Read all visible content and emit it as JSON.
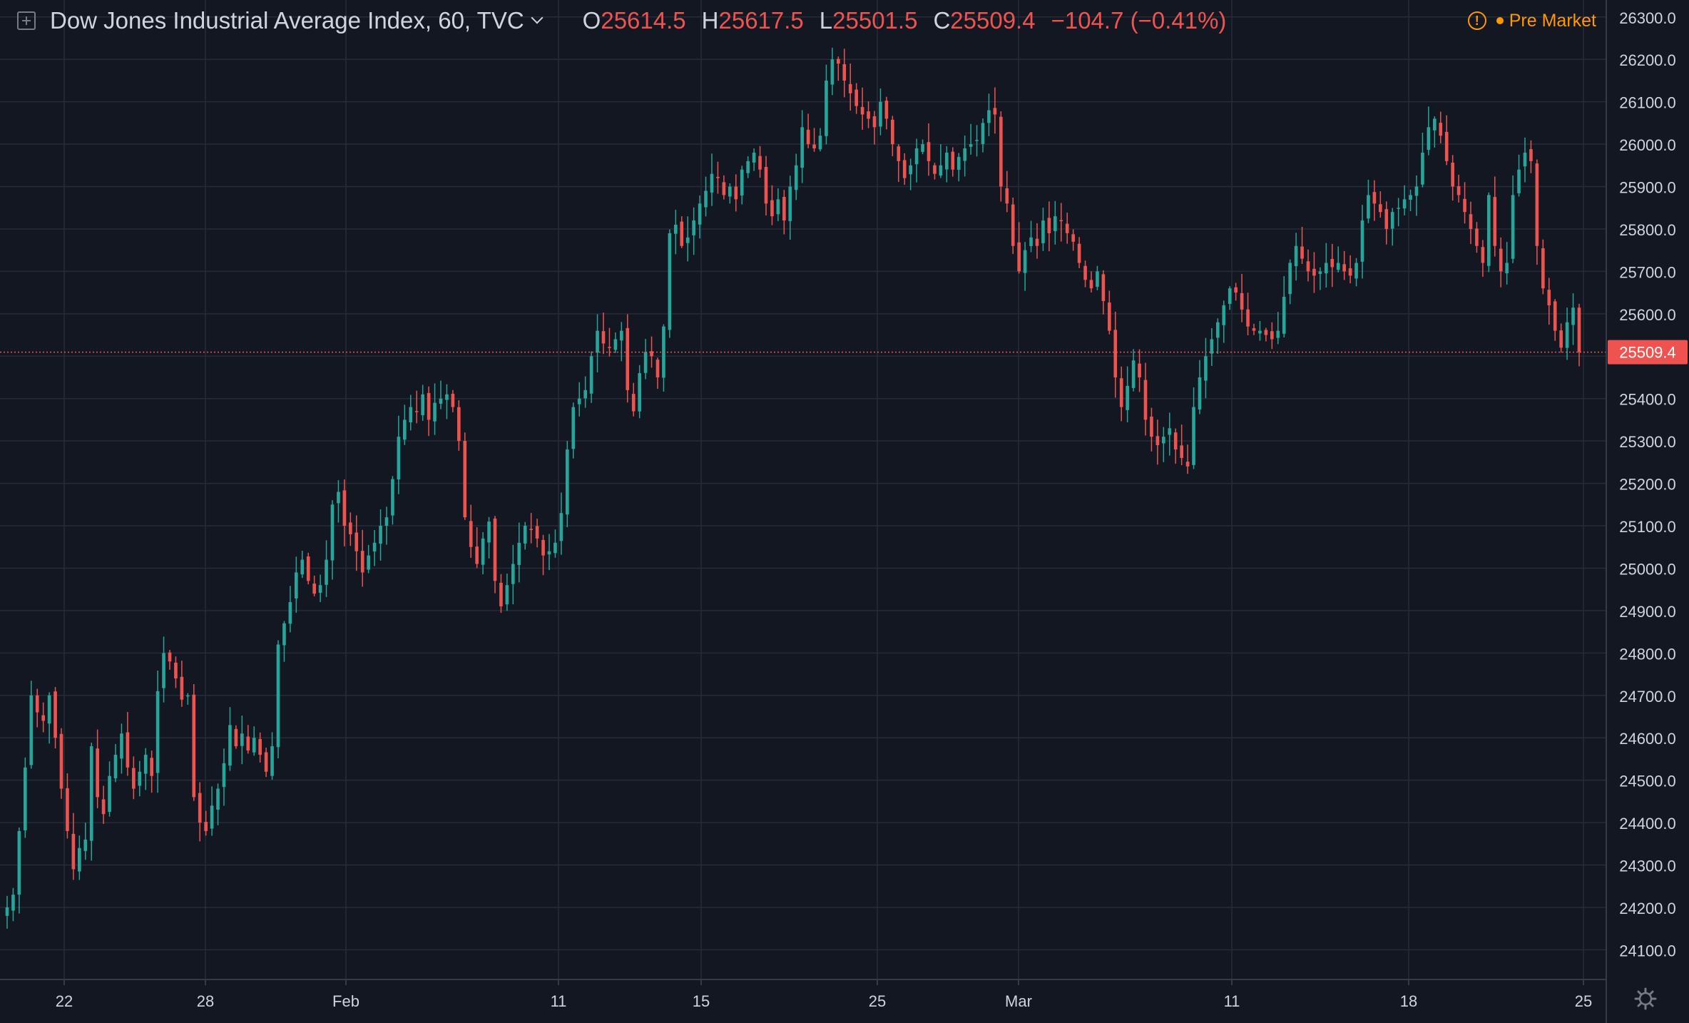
{
  "header": {
    "title": "Dow Jones Industrial Average Index, 60, TVC",
    "open_label": "O",
    "open": "25614.5",
    "high_label": "H",
    "high": "25617.5",
    "low_label": "L",
    "low": "25501.5",
    "close_label": "C",
    "close": "25509.4",
    "change": "−104.7 (−0.41%)",
    "market_status": "Pre Market",
    "market_status_icon": "exclamation-icon"
  },
  "colors": {
    "background": "#131722",
    "grid": "#262b3a",
    "up": "#26a69a",
    "down": "#ef5350",
    "text": "#d1d4dc",
    "price_label_bg": "#ef5350",
    "status": "#ff9800"
  },
  "chart_data": {
    "type": "candlestick",
    "interval": "60",
    "symbol": "Dow Jones Industrial Average Index",
    "ylim": [
      24030,
      26340
    ],
    "y_ticks": [
      "26300.0",
      "26200.0",
      "26100.0",
      "26000.0",
      "25900.0",
      "25800.0",
      "25700.0",
      "25600.0",
      "25500.0",
      "25400.0",
      "25300.0",
      "25200.0",
      "25100.0",
      "25000.0",
      "24900.0",
      "24800.0",
      "24700.0",
      "24600.0",
      "24500.0",
      "24400.0",
      "24300.0",
      "24200.0",
      "24100.0"
    ],
    "x_ticks": [
      "22",
      "28",
      "Feb",
      "11",
      "15",
      "25",
      "Mar",
      "11",
      "18",
      "25"
    ],
    "current_price": 25509.4,
    "current_price_label": "25509.4",
    "close_series": [
      24200,
      24230,
      24380,
      24530,
      24700,
      24660,
      24640,
      24700,
      24600,
      24480,
      24380,
      24290,
      24340,
      24360,
      24580,
      24460,
      24420,
      24510,
      24560,
      24610,
      24530,
      24480,
      24520,
      24560,
      24510,
      24710,
      24800,
      24780,
      24740,
      24690,
      24700,
      24460,
      24400,
      24380,
      24440,
      24480,
      24540,
      24630,
      24580,
      24610,
      24570,
      24600,
      24560,
      24520,
      24580,
      24820,
      24870,
      24920,
      24990,
      25020,
      24970,
      24940,
      24960,
      25020,
      25150,
      25180,
      25100,
      25080,
      25040,
      24990,
      25030,
      25060,
      25100,
      25120,
      25210,
      25310,
      25350,
      25380,
      25370,
      25410,
      25350,
      25390,
      25400,
      25410,
      25380,
      25300,
      25120,
      25050,
      25010,
      25070,
      25110,
      24970,
      24910,
      24960,
      25010,
      25060,
      25100,
      25090,
      25070,
      25030,
      25040,
      25060,
      25130,
      25280,
      25380,
      25400,
      25420,
      25500,
      25560,
      25530,
      25520,
      25540,
      25560,
      25420,
      25370,
      25460,
      25510,
      25500,
      25450,
      25570,
      25790,
      25810,
      25760,
      25780,
      25820,
      25860,
      25890,
      25930,
      25920,
      25880,
      25900,
      25870,
      25940,
      25960,
      25980,
      25940,
      25860,
      25830,
      25870,
      25820,
      25900,
      25950,
      26040,
      26000,
      25990,
      26020,
      26150,
      26200,
      26190,
      26150,
      26120,
      26090,
      26070,
      26060,
      26040,
      26100,
      26060,
      26000,
      25960,
      25920,
      25950,
      25990,
      26000,
      25960,
      25930,
      25950,
      25980,
      25940,
      25970,
      25990,
      26000,
      26010,
      26050,
      26080,
      26070,
      25900,
      25860,
      25760,
      25700,
      25750,
      25780,
      25760,
      25820,
      25790,
      25830,
      25820,
      25790,
      25770,
      25720,
      25680,
      25660,
      25700,
      25630,
      25560,
      25450,
      25380,
      25430,
      25490,
      25450,
      25350,
      25310,
      25290,
      25310,
      25330,
      25280,
      25260,
      25240,
      25380,
      25450,
      25500,
      25540,
      25580,
      25620,
      25660,
      25650,
      25610,
      25570,
      25560,
      25560,
      25550,
      25540,
      25560,
      25640,
      25720,
      25760,
      25730,
      25700,
      25690,
      25700,
      25720,
      25710,
      25720,
      25700,
      25690,
      25720,
      25820,
      25880,
      25860,
      25840,
      25800,
      25840,
      25850,
      25870,
      25880,
      25900,
      25980,
      26040,
      26060,
      26020,
      25960,
      25900,
      25880,
      25840,
      25800,
      25760,
      25720,
      25880,
      25760,
      25700,
      25720,
      25880,
      25940,
      25980,
      25960,
      25760,
      25660,
      25620,
      25560,
      25520,
      25580,
      25614.5,
      25509.4
    ]
  }
}
